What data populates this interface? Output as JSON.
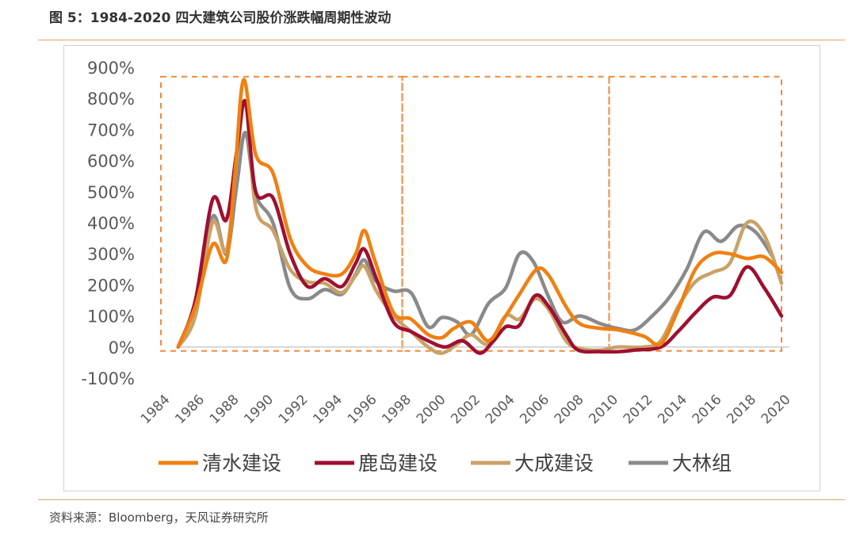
{
  "figure": {
    "title": "图 5：1984-2020 四大建筑公司股价涨跌幅周期性波动",
    "source": "资料来源：Bloomberg，天风证券研究所"
  },
  "chart_data": {
    "type": "line",
    "title": "",
    "xlabel": "",
    "ylabel": "",
    "y_ticks": [
      "900%",
      "800%",
      "700%",
      "600%",
      "500%",
      "400%",
      "300%",
      "200%",
      "100%",
      "0%",
      "-100%"
    ],
    "x_ticks": [
      "1984",
      "1986",
      "1988",
      "1990",
      "1992",
      "1994",
      "1996",
      "1998",
      "2000",
      "2002",
      "2004",
      "2006",
      "2008",
      "2010",
      "2012",
      "2014",
      "2016",
      "2018",
      "2020"
    ],
    "xlim": [
      1984,
      2020
    ],
    "ylim": [
      -100,
      900
    ],
    "grid": false,
    "legend_position": "bottom",
    "cycle_boxes": [
      {
        "x_start": 1984,
        "x_end": 1998,
        "y_top": 870
      },
      {
        "x_start": 1998,
        "x_end": 2010,
        "y_top": 870
      },
      {
        "x_start": 2010,
        "x_end": 2020,
        "y_top": 870
      }
    ],
    "series": [
      {
        "name": "清水建设",
        "color": "#f08010",
        "points": [
          [
            1985,
            0
          ],
          [
            1986,
            130
          ],
          [
            1987,
            330
          ],
          [
            1987.8,
            280
          ],
          [
            1988.3,
            560
          ],
          [
            1988.8,
            860
          ],
          [
            1989.5,
            620
          ],
          [
            1990.5,
            560
          ],
          [
            1991.5,
            350
          ],
          [
            1992.5,
            260
          ],
          [
            1993.5,
            235
          ],
          [
            1994.5,
            235
          ],
          [
            1995.3,
            300
          ],
          [
            1995.8,
            375
          ],
          [
            1996.4,
            280
          ],
          [
            1997.5,
            110
          ],
          [
            1998.5,
            90
          ],
          [
            1999.5,
            40
          ],
          [
            2000.3,
            30
          ],
          [
            2001,
            60
          ],
          [
            2002,
            80
          ],
          [
            2003,
            20
          ],
          [
            2004,
            100
          ],
          [
            2004.8,
            170
          ],
          [
            2005.8,
            250
          ],
          [
            2006.5,
            230
          ],
          [
            2007.5,
            130
          ],
          [
            2008.3,
            75
          ],
          [
            2009.5,
            60
          ],
          [
            2010.5,
            55
          ],
          [
            2012,
            35
          ],
          [
            2013,
            10
          ],
          [
            2014,
            120
          ],
          [
            2015,
            250
          ],
          [
            2016,
            300
          ],
          [
            2017,
            300
          ],
          [
            2018,
            285
          ],
          [
            2019,
            290
          ],
          [
            2020,
            240
          ]
        ]
      },
      {
        "name": "鹿岛建设",
        "color": "#9e1030",
        "points": [
          [
            1985,
            0
          ],
          [
            1986,
            150
          ],
          [
            1987,
            475
          ],
          [
            1987.8,
            410
          ],
          [
            1988.4,
            630
          ],
          [
            1988.9,
            790
          ],
          [
            1989.5,
            500
          ],
          [
            1990.5,
            480
          ],
          [
            1991.5,
            300
          ],
          [
            1992.5,
            195
          ],
          [
            1993.5,
            220
          ],
          [
            1994.5,
            195
          ],
          [
            1995.3,
            270
          ],
          [
            1995.8,
            315
          ],
          [
            1996.5,
            220
          ],
          [
            1997.5,
            80
          ],
          [
            1998.5,
            50
          ],
          [
            1999.5,
            20
          ],
          [
            2000.5,
            0
          ],
          [
            2001.5,
            20
          ],
          [
            2002.5,
            -20
          ],
          [
            2003.3,
            20
          ],
          [
            2004,
            65
          ],
          [
            2004.8,
            70
          ],
          [
            2005.7,
            165
          ],
          [
            2006.5,
            130
          ],
          [
            2007.5,
            40
          ],
          [
            2008.2,
            -10
          ],
          [
            2009.5,
            -15
          ],
          [
            2010.5,
            -15
          ],
          [
            2011.5,
            -10
          ],
          [
            2013,
            0
          ],
          [
            2014,
            50
          ],
          [
            2015,
            110
          ],
          [
            2016,
            160
          ],
          [
            2017,
            165
          ],
          [
            2018,
            258
          ],
          [
            2019,
            190
          ],
          [
            2020,
            100
          ]
        ]
      },
      {
        "name": "大成建设",
        "color": "#c9a268",
        "points": [
          [
            1985,
            0
          ],
          [
            1986,
            100
          ],
          [
            1987,
            400
          ],
          [
            1987.8,
            310
          ],
          [
            1988.4,
            600
          ],
          [
            1988.9,
            790
          ],
          [
            1989.5,
            450
          ],
          [
            1990.5,
            375
          ],
          [
            1991.5,
            250
          ],
          [
            1992.5,
            210
          ],
          [
            1993.5,
            205
          ],
          [
            1994.5,
            175
          ],
          [
            1995.3,
            230
          ],
          [
            1995.8,
            260
          ],
          [
            1996.5,
            180
          ],
          [
            1997.5,
            100
          ],
          [
            1998.5,
            50
          ],
          [
            1999.5,
            0
          ],
          [
            2000.3,
            -20
          ],
          [
            2001.2,
            10
          ],
          [
            2002,
            40
          ],
          [
            2003,
            10
          ],
          [
            2004,
            100
          ],
          [
            2004.8,
            90
          ],
          [
            2005.7,
            155
          ],
          [
            2006.5,
            120
          ],
          [
            2007.5,
            20
          ],
          [
            2008.3,
            -5
          ],
          [
            2009.5,
            -10
          ],
          [
            2010.5,
            0
          ],
          [
            2012,
            0
          ],
          [
            2013,
            20
          ],
          [
            2014,
            130
          ],
          [
            2015,
            210
          ],
          [
            2016,
            240
          ],
          [
            2017,
            270
          ],
          [
            2018,
            400
          ],
          [
            2019,
            360
          ],
          [
            2020,
            205
          ]
        ]
      },
      {
        "name": "大林组",
        "color": "#8a8a8a",
        "points": [
          [
            1985,
            0
          ],
          [
            1986,
            140
          ],
          [
            1987,
            420
          ],
          [
            1987.8,
            300
          ],
          [
            1988.4,
            520
          ],
          [
            1988.9,
            690
          ],
          [
            1989.5,
            490
          ],
          [
            1990.5,
            400
          ],
          [
            1991.5,
            190
          ],
          [
            1992.5,
            155
          ],
          [
            1993.5,
            185
          ],
          [
            1994.5,
            170
          ],
          [
            1995.3,
            235
          ],
          [
            1995.8,
            280
          ],
          [
            1996.5,
            210
          ],
          [
            1997.5,
            180
          ],
          [
            1998.5,
            175
          ],
          [
            1999.5,
            65
          ],
          [
            2000.3,
            95
          ],
          [
            2001.2,
            80
          ],
          [
            2002,
            40
          ],
          [
            2003,
            140
          ],
          [
            2004,
            190
          ],
          [
            2004.8,
            300
          ],
          [
            2005.6,
            275
          ],
          [
            2006.5,
            160
          ],
          [
            2007.3,
            80
          ],
          [
            2008.3,
            100
          ],
          [
            2009.5,
            75
          ],
          [
            2010.5,
            60
          ],
          [
            2011.5,
            55
          ],
          [
            2012.5,
            100
          ],
          [
            2013.5,
            160
          ],
          [
            2014.5,
            250
          ],
          [
            2015.5,
            370
          ],
          [
            2016.5,
            340
          ],
          [
            2017.5,
            390
          ],
          [
            2018.5,
            370
          ],
          [
            2019.5,
            290
          ]
        ]
      }
    ]
  }
}
